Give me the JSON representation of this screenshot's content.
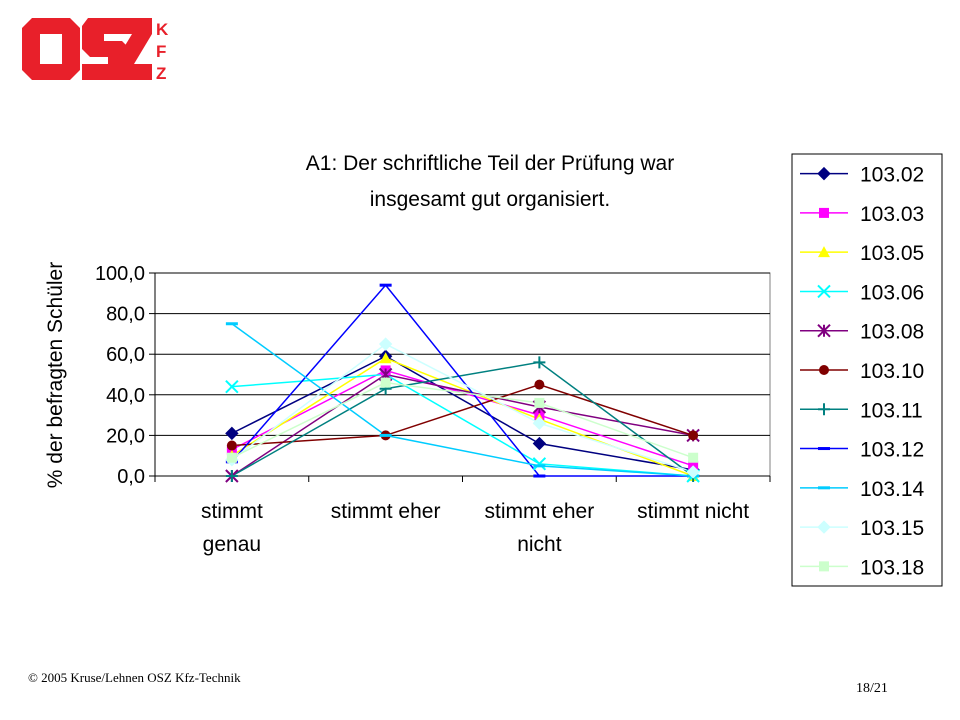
{
  "logo": {
    "text": "OSZ",
    "side_letters": [
      "K",
      "F",
      "Z"
    ],
    "color": "#e8202a"
  },
  "footer": {
    "copyright": "© 2005 Kruse/Lehnen OSZ Kfz-Technik",
    "page": "18/21"
  },
  "chart_data": {
    "type": "line",
    "title": "A1: Der schriftliche Teil der Prüfung war insgesamt gut organisiert.",
    "title_lines": [
      "A1: Der schriftliche Teil der Prüfung war",
      "insgesamt gut organisiert."
    ],
    "xlabel": "",
    "ylabel": "% der befragten Schüler",
    "ylim": [
      0,
      100
    ],
    "yticks": [
      "100,0",
      "80,0",
      "60,0",
      "40,0",
      "20,0",
      "0,0"
    ],
    "categories": [
      [
        "stimmt",
        "genau"
      ],
      [
        "stimmt eher"
      ],
      [
        "stimmt eher",
        "nicht"
      ],
      [
        "stimmt nicht"
      ]
    ],
    "grid": true,
    "legend": "right",
    "series": [
      {
        "name": "103.02",
        "values": [
          21,
          59,
          16,
          3
        ],
        "color": "#000080",
        "marker": "diamond"
      },
      {
        "name": "103.03",
        "values": [
          13,
          52,
          30,
          5
        ],
        "color": "#ff00ff",
        "marker": "square"
      },
      {
        "name": "103.05",
        "values": [
          10,
          58,
          28,
          0
        ],
        "color": "#ffff00",
        "marker": "triangle"
      },
      {
        "name": "103.06",
        "values": [
          44,
          50,
          6,
          0
        ],
        "color": "#00ffff",
        "marker": "x"
      },
      {
        "name": "103.08",
        "values": [
          0,
          50,
          34,
          20
        ],
        "color": "#800080",
        "marker": "asterisk"
      },
      {
        "name": "103.10",
        "values": [
          15,
          20,
          45,
          20
        ],
        "color": "#800000",
        "marker": "circle"
      },
      {
        "name": "103.11",
        "values": [
          0,
          43,
          56,
          0
        ],
        "color": "#008080",
        "marker": "plus"
      },
      {
        "name": "103.12",
        "values": [
          7,
          94,
          0,
          0
        ],
        "color": "#0000ff",
        "marker": "dash"
      },
      {
        "name": "103.14",
        "values": [
          75,
          20,
          5,
          0
        ],
        "color": "#00ccff",
        "marker": "dash"
      },
      {
        "name": "103.15",
        "values": [
          8,
          65,
          26,
          2
        ],
        "color": "#ccffff",
        "marker": "diamond"
      },
      {
        "name": "103.18",
        "values": [
          9,
          46,
          36,
          9
        ],
        "color": "#ccffcc",
        "marker": "square"
      }
    ]
  }
}
